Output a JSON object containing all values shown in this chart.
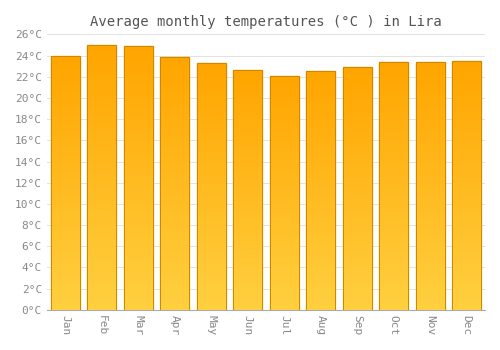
{
  "title": "Average monthly temperatures (°C ) in Lira",
  "months": [
    "Jan",
    "Feb",
    "Mar",
    "Apr",
    "May",
    "Jun",
    "Jul",
    "Aug",
    "Sep",
    "Oct",
    "Nov",
    "Dec"
  ],
  "values": [
    24.0,
    25.0,
    24.9,
    23.9,
    23.3,
    22.6,
    22.1,
    22.5,
    22.9,
    23.4,
    23.4,
    23.5
  ],
  "bar_color": "#FFA500",
  "bar_color_bottom": "#FFD040",
  "bar_edge_color": "#CC8800",
  "ylim": [
    0,
    26
  ],
  "background_color": "#ffffff",
  "grid_color": "#dddddd",
  "title_fontsize": 10,
  "tick_fontsize": 8,
  "font_family": "monospace"
}
